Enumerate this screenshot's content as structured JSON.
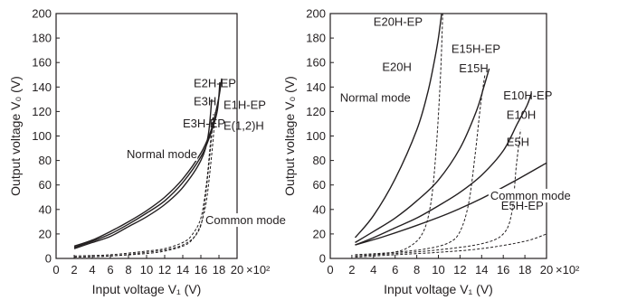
{
  "chart_data": [
    {
      "type": "line",
      "title": "",
      "xlabel": "Input voltage V₁ (V)",
      "ylabel": "Output voltage V₀ (V)",
      "x_multiplier_label": "×10²",
      "xlim": [
        0,
        20
      ],
      "ylim": [
        0,
        200
      ],
      "x_ticks": [
        0,
        2,
        4,
        6,
        8,
        10,
        12,
        14,
        16,
        18,
        20
      ],
      "y_ticks": [
        0,
        20,
        40,
        60,
        80,
        100,
        120,
        140,
        160,
        180,
        200
      ],
      "grid": false,
      "annotations": [
        {
          "text": "E2H-EP",
          "x": 15.2,
          "y": 140
        },
        {
          "text": "E3H",
          "x": 15.2,
          "y": 125
        },
        {
          "text": "E3H-EP",
          "x": 14.0,
          "y": 107
        },
        {
          "text": "E1H-EP",
          "x": 18.5,
          "y": 122
        },
        {
          "text": "E(1,2)H",
          "x": 18.5,
          "y": 105
        },
        {
          "text": "Normal mode",
          "x": 7.8,
          "y": 82
        },
        {
          "text": "Common mode",
          "x": 16.5,
          "y": 28
        }
      ],
      "series": [
        {
          "style": "solid",
          "x": [
            2,
            4,
            6,
            8,
            10,
            12,
            14,
            16,
            17,
            17.5,
            18,
            18.3
          ],
          "y": [
            10,
            15,
            22,
            30,
            39,
            50,
            65,
            86,
            102,
            115,
            132,
            147
          ]
        },
        {
          "style": "solid",
          "x": [
            2,
            4,
            6,
            8,
            10,
            12,
            14,
            16,
            17,
            17.8,
            18.1
          ],
          "y": [
            9,
            14,
            20,
            28,
            37,
            47,
            62,
            83,
            100,
            120,
            144
          ]
        },
        {
          "style": "solid",
          "x": [
            2,
            4,
            6,
            8,
            10,
            12,
            14,
            16,
            16.8,
            17.2
          ],
          "y": [
            8,
            13,
            18,
            26,
            34,
            44,
            58,
            80,
            100,
            130
          ]
        },
        {
          "style": "dashed",
          "x": [
            2,
            6,
            10,
            12,
            14,
            15,
            16,
            16.5,
            17,
            17.4
          ],
          "y": [
            1,
            2,
            4,
            6,
            10,
            15,
            27,
            50,
            85,
            118
          ]
        },
        {
          "style": "dashed",
          "x": [
            2,
            6,
            10,
            12,
            14,
            15,
            16,
            16.6,
            17,
            17.3
          ],
          "y": [
            2,
            3,
            6,
            8,
            13,
            19,
            33,
            60,
            90,
            115
          ]
        },
        {
          "style": "dashed",
          "x": [
            2,
            6,
            10,
            12,
            14,
            15.5,
            16.5,
            17.2,
            17.6
          ],
          "y": [
            1,
            2,
            5,
            7,
            11,
            20,
            42,
            85,
            120
          ]
        }
      ]
    },
    {
      "type": "line",
      "title": "",
      "xlabel": "Input voltage V₁ (V)",
      "ylabel": "Output voltage V₀ (V)",
      "x_multiplier_label": "×10²",
      "xlim": [
        0,
        20
      ],
      "ylim": [
        0,
        200
      ],
      "x_ticks": [
        0,
        2,
        4,
        6,
        8,
        10,
        12,
        14,
        16,
        18,
        20
      ],
      "y_ticks": [
        0,
        20,
        40,
        60,
        80,
        100,
        120,
        140,
        160,
        180,
        200
      ],
      "grid": false,
      "annotations": [
        {
          "text": "E20H-EP",
          "x": 4.0,
          "y": 190
        },
        {
          "text": "E20H",
          "x": 4.8,
          "y": 153
        },
        {
          "text": "Normal mode",
          "x": 0.9,
          "y": 128
        },
        {
          "text": "E15H-EP",
          "x": 11.2,
          "y": 168
        },
        {
          "text": "E15H",
          "x": 11.9,
          "y": 152
        },
        {
          "text": "E10H-EP",
          "x": 16.0,
          "y": 130
        },
        {
          "text": "E10H",
          "x": 16.3,
          "y": 114
        },
        {
          "text": "E5H",
          "x": 16.3,
          "y": 92
        },
        {
          "text": "Common mode",
          "x": 14.8,
          "y": 48
        },
        {
          "text": "E5H-EP",
          "x": 15.8,
          "y": 40
        }
      ],
      "series": [
        {
          "name": "E20H",
          "style": "solid",
          "x": [
            2.3,
            4,
            6,
            8,
            9,
            9.6,
            10,
            10.3
          ],
          "y": [
            17,
            35,
            65,
            105,
            135,
            160,
            180,
            200
          ]
        },
        {
          "name": "E15H",
          "style": "solid",
          "x": [
            2.3,
            4,
            6,
            8,
            10,
            12,
            13.5,
            14.2,
            14.7
          ],
          "y": [
            13,
            22,
            33,
            47,
            64,
            90,
            120,
            140,
            155
          ]
        },
        {
          "name": "E10H",
          "style": "solid",
          "x": [
            2.3,
            4,
            6,
            8,
            10,
            12,
            14,
            16,
            17.3,
            18.2,
            18.6
          ],
          "y": [
            11,
            17,
            25,
            33,
            43,
            54,
            68,
            88,
            110,
            125,
            135
          ]
        },
        {
          "name": "E5H",
          "style": "solid",
          "x": [
            2.3,
            5,
            8,
            11,
            14,
            17,
            20
          ],
          "y": [
            11,
            18,
            27,
            37,
            49,
            63,
            78
          ]
        },
        {
          "name": "E20H-EP",
          "style": "dashed",
          "x": [
            2.3,
            5,
            7,
            8.5,
            9.3,
            9.8,
            10.2,
            10.4
          ],
          "y": [
            2,
            4,
            8,
            20,
            45,
            90,
            150,
            200
          ]
        },
        {
          "name": "E15H-EP",
          "style": "dashed",
          "x": [
            2.3,
            6,
            9,
            11,
            12,
            12.8,
            13.4,
            13.9,
            14.3
          ],
          "y": [
            3,
            5,
            8,
            13,
            22,
            45,
            85,
            125,
            150
          ]
        },
        {
          "name": "E10H-EP",
          "style": "dashed",
          "x": [
            2.3,
            6,
            10,
            14,
            16,
            16.8,
            17.2,
            17.6
          ],
          "y": [
            2,
            4,
            7,
            12,
            20,
            38,
            75,
            105
          ]
        },
        {
          "name": "E5H-EP",
          "style": "dashed",
          "x": [
            2.3,
            6,
            10,
            14,
            18,
            20
          ],
          "y": [
            1,
            3,
            5,
            8,
            14,
            20
          ]
        }
      ]
    }
  ]
}
